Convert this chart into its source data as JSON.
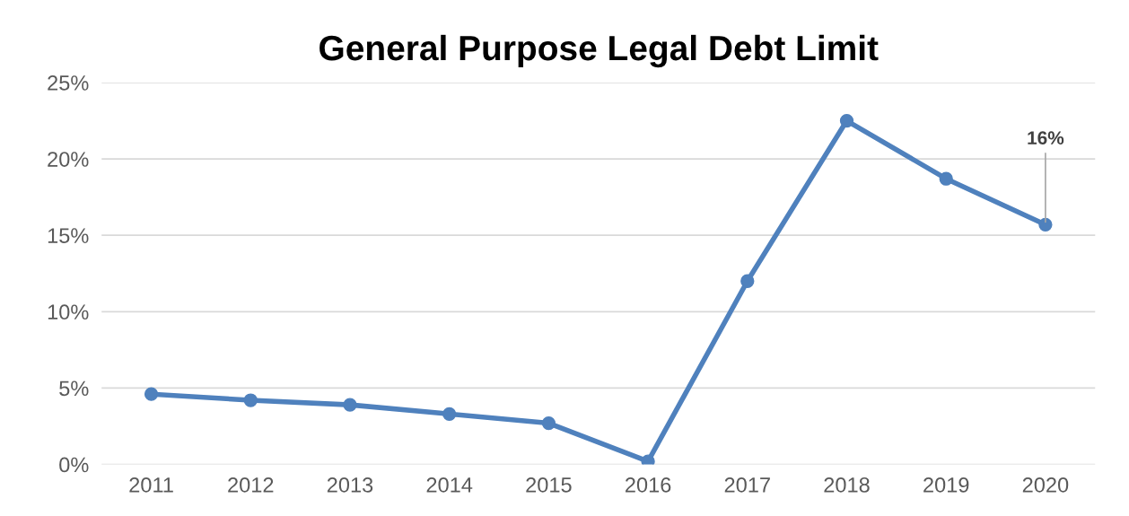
{
  "chart_data": {
    "type": "line",
    "title": "General Purpose Legal Debt Limit",
    "categories": [
      "2011",
      "2012",
      "2013",
      "2014",
      "2015",
      "2016",
      "2017",
      "2018",
      "2019",
      "2020"
    ],
    "series": [
      {
        "color": "#4f81bd",
        "values": [
          4.6,
          4.2,
          3.9,
          3.3,
          2.7,
          0.2,
          12.0,
          22.5,
          18.7,
          15.7
        ]
      }
    ],
    "ylim": [
      0,
      25
    ],
    "yticks": [
      {
        "value": 0,
        "label": "0%"
      },
      {
        "value": 5,
        "label": "5%"
      },
      {
        "value": 10,
        "label": "10%"
      },
      {
        "value": 15,
        "label": "15%"
      },
      {
        "value": 20,
        "label": "20%"
      },
      {
        "value": 25,
        "label": "25%"
      }
    ],
    "grid": "y",
    "marker": "circle",
    "line_style": "solid",
    "annotations": [
      {
        "text": "16%",
        "x": "2020",
        "y": 15.7
      }
    ]
  }
}
